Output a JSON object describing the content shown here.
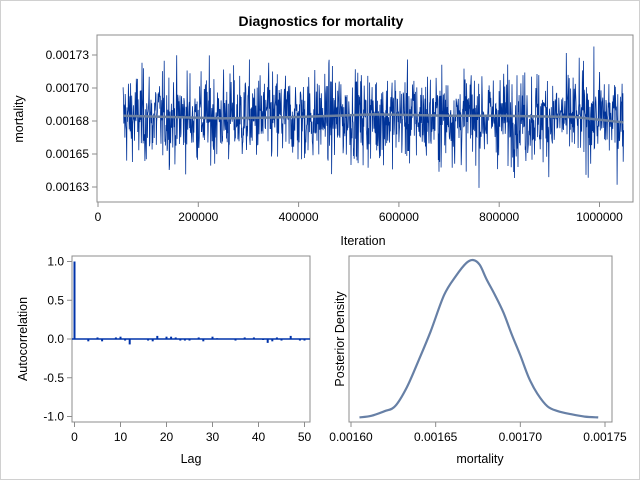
{
  "title": "Diagnostics for mortality",
  "colors": {
    "trace": "#003399",
    "smooth": "#6a7fa0",
    "acf": "#0033aa",
    "density": "#6780a6",
    "frame": "#8c8c8c"
  },
  "chart_data": [
    {
      "type": "line",
      "name": "trace",
      "xlabel": "Iteration",
      "ylabel": "mortality",
      "xlim": [
        0,
        1050000
      ],
      "ylim": [
        0.001612,
        0.001738
      ],
      "x_ticks": [
        0,
        200000,
        400000,
        600000,
        800000,
        1000000
      ],
      "x_tick_labels": [
        "0",
        "200000",
        "400000",
        "600000",
        "800000",
        "1000000"
      ],
      "y_ticks": [
        0.001725,
        0.0017,
        0.001675,
        0.00165,
        0.001625
      ],
      "y_tick_labels": [
        "0.00173",
        "0.00170",
        "0.00168",
        "0.00165",
        "0.00163"
      ],
      "iteration_range": [
        50000,
        1048000
      ],
      "mean": 0.001678,
      "sd": 1.7e-05,
      "min": 0.001617,
      "max": 0.001737,
      "smooth": {
        "x": [
          50000,
          250000,
          400000,
          550000,
          700000,
          800000,
          950000,
          1048000
        ],
        "y": [
          0.001679,
          0.001677,
          0.001678,
          0.00168,
          0.001679,
          0.001679,
          0.001678,
          0.001674
        ]
      }
    },
    {
      "type": "bar",
      "name": "autocorrelation",
      "xlabel": "Lag",
      "ylabel": "Autocorrelation",
      "xlim": [
        0,
        51
      ],
      "ylim": [
        -1.05,
        1.05
      ],
      "x_ticks": [
        0,
        10,
        20,
        30,
        40,
        50
      ],
      "y_ticks": [
        1.0,
        0.5,
        0.0,
        -0.5,
        -1.0
      ],
      "y_tick_labels": [
        "1.0",
        "0.5",
        "0.0",
        "-0.5",
        "-1.0"
      ],
      "lags": [
        0,
        1,
        2,
        3,
        4,
        5,
        6,
        7,
        8,
        9,
        10,
        11,
        12,
        13,
        14,
        15,
        16,
        17,
        18,
        19,
        20,
        21,
        22,
        23,
        24,
        25,
        26,
        27,
        28,
        29,
        30,
        31,
        32,
        33,
        34,
        35,
        36,
        37,
        38,
        39,
        40,
        41,
        42,
        43,
        44,
        45,
        46,
        47,
        48,
        49,
        50
      ],
      "values": [
        1.0,
        0.0,
        0.0,
        -0.03,
        0.0,
        0.02,
        -0.03,
        0.0,
        0.0,
        0.02,
        0.03,
        -0.02,
        -0.07,
        0.0,
        0.0,
        0.0,
        -0.02,
        -0.03,
        0.04,
        0.0,
        0.03,
        0.03,
        0.02,
        -0.02,
        -0.02,
        -0.02,
        0.0,
        0.02,
        -0.03,
        0.0,
        0.03,
        0.01,
        0.0,
        0.0,
        0.0,
        -0.02,
        0.0,
        0.02,
        0.0,
        0.02,
        0.0,
        -0.01,
        -0.05,
        -0.03,
        0.02,
        -0.02,
        0.0,
        0.04,
        0.0,
        -0.02,
        -0.02
      ]
    },
    {
      "type": "line",
      "name": "density",
      "xlabel": "mortality",
      "ylabel": "Posterior Density",
      "xlim": [
        0.001599,
        0.0017505
      ],
      "x_ticks": [
        0.0016,
        0.00165,
        0.0017,
        0.00175
      ],
      "x_tick_labels": [
        "0.00160",
        "0.00165",
        "0.00170",
        "0.00175"
      ],
      "x": [
        0.001605,
        0.001612,
        0.00162,
        0.001626,
        0.001633,
        0.00164,
        0.001647,
        0.001655,
        0.001662,
        0.001668,
        0.001672,
        0.001676,
        0.00168,
        0.001685,
        0.00169,
        0.001695,
        0.0017,
        0.001705,
        0.00171,
        0.001716,
        0.001722,
        0.00173,
        0.001738,
        0.001746
      ],
      "y": [
        0.01,
        0.02,
        0.05,
        0.08,
        0.2,
        0.37,
        0.55,
        0.78,
        0.9,
        0.98,
        1.0,
        0.97,
        0.88,
        0.78,
        0.67,
        0.53,
        0.4,
        0.26,
        0.16,
        0.08,
        0.05,
        0.03,
        0.015,
        0.01
      ]
    }
  ]
}
